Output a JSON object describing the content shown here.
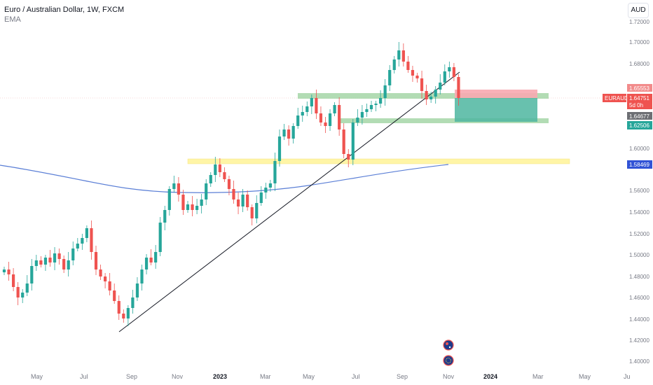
{
  "header": {
    "title": "Euro / Australian Dollar, 1W, FXCM",
    "indicator": "EMA",
    "currency": "AUD"
  },
  "price_axis": {
    "ticks": [
      "1.72000",
      "1.70000",
      "1.68000",
      "1.65553",
      "1.64751",
      "1.64677",
      "1.62506",
      "1.60000",
      "1.58469",
      "1.56000",
      "1.54000",
      "1.52000",
      "1.50000",
      "1.48000",
      "1.46000",
      "1.44000",
      "1.42000",
      "1.40000"
    ]
  },
  "tags": {
    "symbol": "EURAUD",
    "target_price": "1.65553",
    "last_price": "1.64751",
    "countdown": "5d 0h",
    "cursor_price": "1.64677",
    "stop_price": "1.62506",
    "ema_price": "1.58469"
  },
  "time_axis": {
    "labels": [
      "May",
      "Jul",
      "Sep",
      "Nov",
      "2023",
      "Mar",
      "May",
      "Jul",
      "Sep",
      "Nov",
      "2024",
      "Mar",
      "May",
      "Ju"
    ]
  },
  "colors": {
    "up": "#26a69a",
    "down": "#ef5350",
    "ema": "#5b7fd6",
    "zone_green": "#a5d6a7",
    "zone_yellow": "#fff59d",
    "target_zone": "#f7a8b0",
    "profit_zone": "#4db6a0"
  },
  "icons": [
    "flag-au-icon",
    "flag-eu-icon"
  ]
}
